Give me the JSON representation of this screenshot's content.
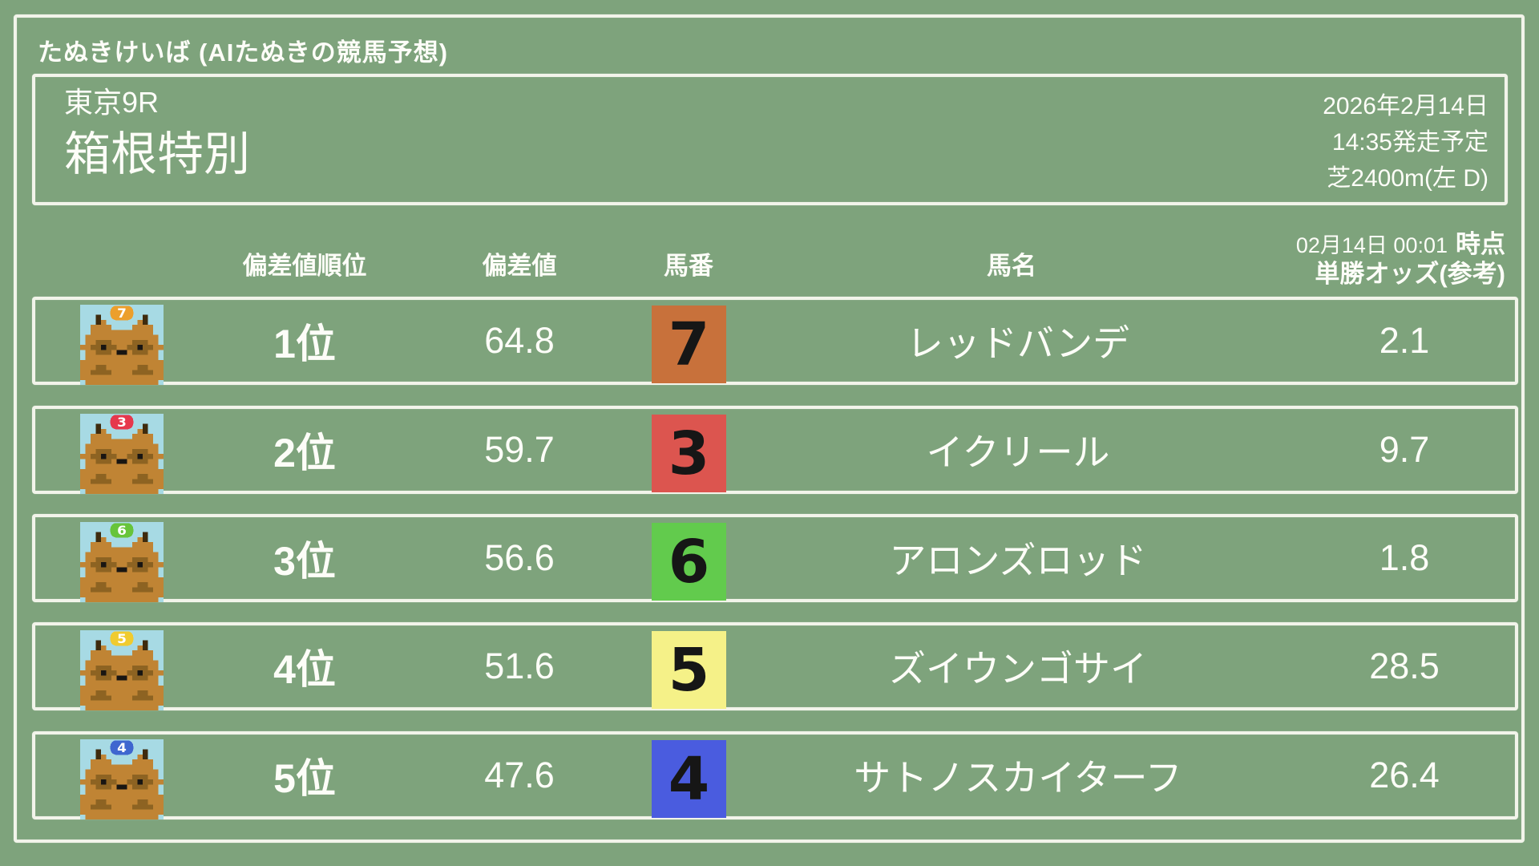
{
  "app": {
    "title": "たぬきけいば (AIたぬきの競馬予想)"
  },
  "race": {
    "course": "東京9R",
    "name": "箱根特別",
    "date": "2026年2月14日",
    "start": "14:35発走予定",
    "track": "芝2400m(左 D)"
  },
  "table": {
    "headers": {
      "rank": "偏差値順位",
      "score": "偏差値",
      "number": "馬番",
      "name": "馬名",
      "odds_time": "02月14日 00:01",
      "odds_time_suffix": "時点",
      "odds_label": "単勝オッズ(参考)"
    },
    "rows": [
      {
        "rank": "1位",
        "score": "64.8",
        "number": "7",
        "number_color": "#C8713B",
        "medal_color": "#EC9F2C",
        "name": "レッドバンデ",
        "odds": "2.1"
      },
      {
        "rank": "2位",
        "score": "59.7",
        "number": "3",
        "number_color": "#DC554F",
        "medal_color": "#E6384C",
        "name": "イクリール",
        "odds": "9.7"
      },
      {
        "rank": "3位",
        "score": "56.6",
        "number": "6",
        "number_color": "#62CB4D",
        "medal_color": "#67C43A",
        "name": "アロンズロッド",
        "odds": "1.8"
      },
      {
        "rank": "4位",
        "score": "51.6",
        "number": "5",
        "number_color": "#F5F188",
        "medal_color": "#F0CB2F",
        "name": "ズイウンゴサイ",
        "odds": "28.5"
      },
      {
        "rank": "5位",
        "score": "47.6",
        "number": "4",
        "number_color": "#4A5CDF",
        "medal_color": "#3E66CF",
        "name": "サトノスカイターフ",
        "odds": "26.4"
      }
    ]
  },
  "colors": {
    "background": "#7EA37C",
    "chalk": "#F2F4EA",
    "text": "#FDFDF8",
    "number_text": "#161616",
    "avatar_sky": "#A7DAE4",
    "avatar_body": "#C08434",
    "avatar_shade": "#8D6322",
    "avatar_ear": "#3E2B0E",
    "avatar_dark": "#181512"
  },
  "icons": {
    "avatar": "tanuki-avatar-icon"
  }
}
